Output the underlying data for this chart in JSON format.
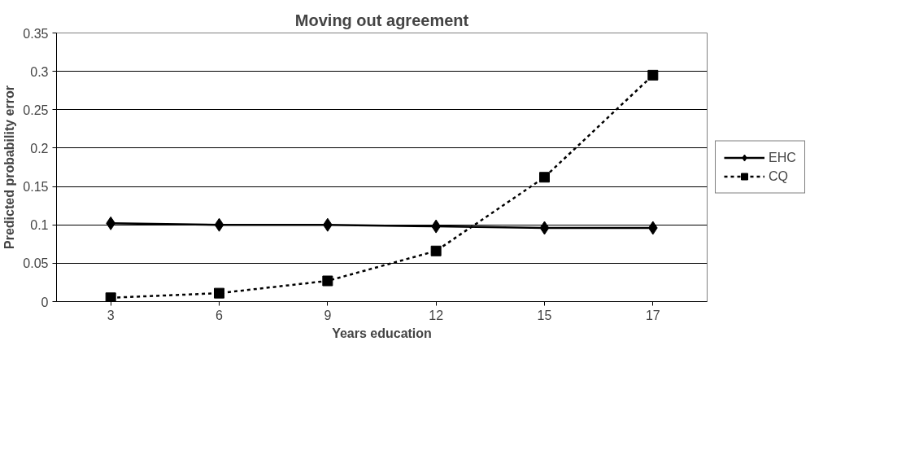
{
  "chart_data": {
    "type": "line",
    "title": "Moving out agreement",
    "xlabel": "Years education",
    "ylabel": "Predicted probability error",
    "categories": [
      "3",
      "6",
      "9",
      "12",
      "15",
      "17"
    ],
    "series": [
      {
        "name": "EHC",
        "color": "#000000",
        "marker": "diamond",
        "line_style": "solid",
        "values": [
          0.102,
          0.1,
          0.1,
          0.098,
          0.096,
          0.096
        ]
      },
      {
        "name": "CQ",
        "color": "#000000",
        "marker": "square",
        "line_style": "dashed",
        "values": [
          0.005,
          0.011,
          0.027,
          0.066,
          0.162,
          0.295
        ]
      }
    ],
    "ylim": [
      0,
      0.35
    ],
    "yticks": [
      0,
      0.05,
      0.1,
      0.15,
      0.2,
      0.25,
      0.3,
      0.35
    ],
    "grid": "y",
    "legend": "right"
  }
}
